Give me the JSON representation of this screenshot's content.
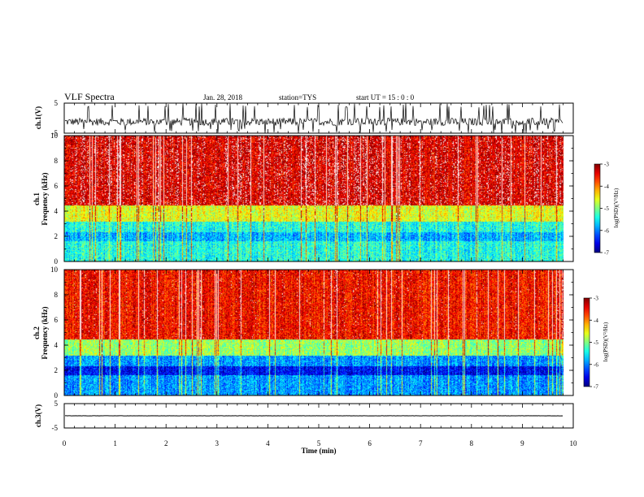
{
  "header": {
    "title": "VLF Spectra",
    "date": "Jan. 28, 2018",
    "station": "station=TYS",
    "start_ut": "start UT = 15 : 0 : 0"
  },
  "chart_data": [
    {
      "type": "line",
      "name": "ch1-voltage",
      "ylabel": "ch.1(V)",
      "ylim": [
        -5,
        5
      ],
      "y_ticks": [
        5,
        -5
      ],
      "xlim": [
        0,
        10
      ],
      "mean_level": -1.2,
      "noise_amplitude": 2.5
    },
    {
      "type": "heatmap",
      "name": "ch1-spectrogram",
      "ylabel_line1": "ch.1",
      "ylabel_line2": "Frequency (kHz)",
      "ylim": [
        0,
        10
      ],
      "y_ticks": [
        0,
        2,
        4,
        6,
        8,
        10
      ],
      "xlim": [
        0,
        9.8
      ],
      "colorbar": {
        "label": "log(PSD)(V²/Hz)",
        "min": -7,
        "max": -3,
        "ticks": [
          -3,
          -4,
          -5,
          -6,
          -7
        ]
      }
    },
    {
      "type": "heatmap",
      "name": "ch2-spectrogram",
      "ylabel_line1": "ch.2",
      "ylabel_line2": "Frequency (kHz)",
      "ylim": [
        0,
        10
      ],
      "y_ticks": [
        0,
        2,
        4,
        6,
        8,
        10
      ],
      "xlim": [
        0,
        9.8
      ],
      "colorbar": {
        "label": "log(PSD)(V²/Hz)",
        "min": -7,
        "max": -3,
        "ticks": [
          -3,
          -4,
          -5,
          -6,
          -7
        ]
      }
    },
    {
      "type": "line",
      "name": "ch3-voltage",
      "ylabel": "ch.3(V)",
      "ylim": [
        -5,
        5
      ],
      "y_ticks": [
        5,
        -5
      ],
      "xlim": [
        0,
        10
      ],
      "mean_level": 0,
      "noise_amplitude": 0.1
    }
  ],
  "xaxis": {
    "label": "Time (min)",
    "xlim": [
      0,
      10
    ],
    "ticks": [
      0,
      1,
      2,
      3,
      4,
      5,
      6,
      7,
      8,
      9,
      10
    ]
  }
}
